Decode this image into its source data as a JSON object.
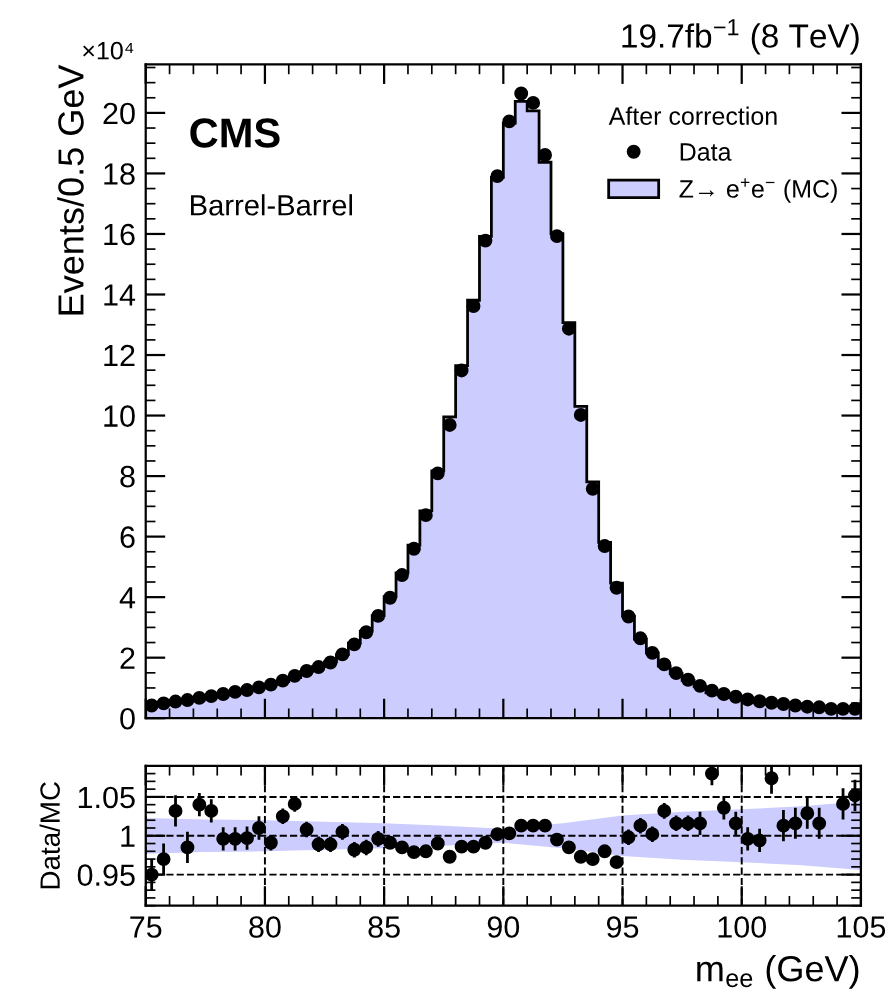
{
  "chart_data": [
    {
      "type": "histogram",
      "title": "19.7fb$^{−1}$ (8 TeV)",
      "ylabel": "Events/0.5 GeV",
      "legend": "top right",
      "legend_title": "After correction",
      "annotations": [
        "CMS",
        "Barrel-Barrel",
        "×10⁴"
      ],
      "bins": [
        75,
        75.5,
        76,
        76.5,
        77,
        77.5,
        78,
        78.5,
        79,
        79.5,
        80,
        80.5,
        81,
        81.5,
        82,
        82.5,
        83,
        83.5,
        84,
        84.5,
        85,
        85.5,
        86,
        86.5,
        87,
        87.5,
        88,
        88.5,
        89,
        89.5,
        90,
        90.5,
        91,
        91.5,
        92,
        92.5,
        93,
        93.5,
        94,
        94.5,
        95,
        95.5,
        96,
        96.5,
        97,
        97.5,
        98,
        98.5,
        99,
        99.5,
        100,
        100.5,
        101,
        101.5,
        102,
        102.5,
        103,
        103.5,
        104,
        104.5,
        105
      ],
      "series": [
        {
          "name": "Data",
          "type": "scatter",
          "color": "#000000",
          "marker": "circle",
          "x": [
            75.25,
            75.75,
            76.25,
            76.75,
            77.25,
            77.75,
            78.25,
            78.75,
            79.25,
            79.75,
            80.25,
            80.75,
            81.25,
            81.75,
            82.25,
            82.75,
            83.25,
            83.75,
            84.25,
            84.75,
            85.25,
            85.75,
            86.25,
            86.75,
            87.25,
            87.75,
            88.25,
            88.75,
            89.25,
            89.75,
            90.25,
            90.75,
            91.25,
            91.75,
            92.25,
            92.75,
            93.25,
            93.75,
            94.25,
            94.75,
            95.25,
            95.75,
            96.25,
            96.75,
            97.25,
            97.75,
            98.25,
            98.75,
            99.25,
            99.75,
            100.25,
            100.75,
            101.25,
            101.75,
            102.25,
            102.75,
            103.25,
            103.75,
            104.25,
            104.75
          ],
          "values": [
            0.42,
            0.49,
            0.55,
            0.6,
            0.67,
            0.73,
            0.8,
            0.87,
            0.93,
            1.02,
            1.11,
            1.24,
            1.4,
            1.56,
            1.69,
            1.84,
            2.11,
            2.44,
            2.84,
            3.38,
            3.98,
            4.73,
            5.6,
            6.71,
            8.09,
            9.69,
            11.49,
            13.62,
            15.78,
            17.91,
            19.72,
            20.64,
            20.33,
            18.61,
            15.93,
            12.87,
            10.02,
            7.58,
            5.69,
            4.31,
            3.36,
            2.64,
            2.16,
            1.78,
            1.49,
            1.27,
            1.07,
            0.91,
            0.8,
            0.71,
            0.62,
            0.56,
            0.51,
            0.47,
            0.42,
            0.38,
            0.36,
            0.31,
            0.31,
            0.31
          ]
        },
        {
          "name": "Z→ e$^{+}$e$^{−}$ (MC)",
          "color": "#ccccff",
          "values": [
            0.44,
            0.51,
            0.53,
            0.61,
            0.64,
            0.71,
            0.8,
            0.87,
            0.93,
            1.01,
            1.12,
            1.21,
            1.34,
            1.55,
            1.71,
            1.86,
            2.1,
            2.48,
            2.88,
            3.39,
            4.02,
            4.8,
            5.72,
            6.85,
            8.17,
            9.96,
            11.65,
            13.81,
            15.92,
            17.87,
            19.66,
            20.38,
            20.07,
            18.37,
            16.01,
            13.07,
            10.3,
            7.81,
            5.81,
            4.46,
            3.37,
            2.61,
            2.16,
            1.72,
            1.47,
            1.25,
            1.05,
            0.84,
            0.77,
            0.7,
            0.62,
            0.56,
            0.47,
            0.46,
            0.41,
            0.37,
            0.35,
            0.31,
            0.3,
            0.29
          ]
        }
      ],
      "xlim": [
        75,
        105
      ],
      "xticks": [
        75,
        80,
        85,
        90,
        95,
        100,
        105
      ],
      "ylim": [
        0,
        21.6
      ],
      "yticks": [
        0,
        2,
        4,
        6,
        8,
        10,
        12,
        14,
        16,
        18,
        20
      ],
      "tick_labels": "y",
      "grid": false
    },
    {
      "type": "scatter",
      "xlabel": "m$_{ee}$ (GeV)",
      "ylabel": "Data/MC",
      "series": [
        {
          "type": "line",
          "color": "#ccccff",
          "x": [
            75,
            77.5,
            80,
            82.5,
            85,
            87.5,
            90,
            92.5,
            95,
            97.5,
            100,
            102.5,
            105
          ],
          "values": [
            1,
            1,
            1,
            1,
            1,
            1,
            1,
            1,
            1,
            1,
            1,
            1,
            1
          ],
          "lower": [
            0.977,
            0.979,
            0.98,
            0.982,
            0.984,
            0.987,
            0.991,
            0.984,
            0.974,
            0.969,
            0.966,
            0.962,
            0.956
          ],
          "upper": [
            1.023,
            1.021,
            1.02,
            1.018,
            1.016,
            1.013,
            1.009,
            1.016,
            1.026,
            1.031,
            1.034,
            1.038,
            1.044
          ]
        },
        {
          "color": "#000000",
          "marker": "circle",
          "x": [
            75.25,
            75.75,
            76.25,
            76.75,
            77.25,
            77.75,
            78.25,
            78.75,
            79.25,
            79.75,
            80.25,
            80.75,
            81.25,
            81.75,
            82.25,
            82.75,
            83.25,
            83.75,
            84.25,
            84.75,
            85.25,
            85.75,
            86.25,
            86.75,
            87.25,
            87.75,
            88.25,
            88.75,
            89.25,
            89.75,
            90.25,
            90.75,
            91.25,
            91.75,
            92.25,
            92.75,
            93.25,
            93.75,
            94.25,
            94.75,
            95.25,
            95.75,
            96.25,
            96.75,
            97.25,
            97.75,
            98.25,
            98.75,
            99.25,
            99.75,
            100.25,
            100.75,
            101.25,
            101.75,
            102.25,
            102.75,
            103.25,
            103.75,
            104.25,
            104.75
          ],
          "values": [
            0.95,
            0.97,
            1.032,
            0.985,
            1.04,
            1.032,
            0.996,
            0.996,
            0.997,
            1.01,
            0.991,
            1.025,
            1.041,
            1.008,
            0.989,
            0.989,
            1.005,
            0.982,
            0.985,
            0.996,
            0.991,
            0.985,
            0.979,
            0.98,
            0.99,
            0.973,
            0.986,
            0.986,
            0.991,
            1.002,
            1.003,
            1.013,
            1.013,
            1.013,
            0.995,
            0.985,
            0.973,
            0.97,
            0.98,
            0.966,
            0.998,
            1.013,
            1.002,
            1.032,
            1.016,
            1.016,
            1.016,
            1.08,
            1.036,
            1.016,
            0.996,
            0.994,
            1.074,
            1.013,
            1.016,
            1.029,
            1.016,
            null,
            1.041,
            1.052
          ],
          "errors": [
            0.02,
            0.02,
            0.02,
            0.02,
            0.015,
            0.015,
            0.015,
            0.015,
            0.015,
            0.015,
            0.01,
            0.01,
            0.01,
            0.01,
            0.01,
            0.01,
            0.01,
            0.01,
            0.01,
            0.01,
            0.006,
            0.006,
            0.006,
            0.006,
            0.006,
            0.006,
            0.004,
            0.004,
            0.004,
            0.004,
            0.004,
            0.004,
            0.004,
            0.004,
            0.006,
            0.006,
            0.006,
            0.006,
            0.006,
            0.006,
            0.01,
            0.01,
            0.01,
            0.01,
            0.01,
            0.01,
            0.015,
            0.015,
            0.015,
            0.015,
            0.015,
            0.015,
            0.02,
            0.02,
            0.02,
            0.02,
            0.02,
            null,
            0.02,
            0.02
          ]
        }
      ],
      "xlim": [
        75,
        105
      ],
      "xticks": [
        75,
        80,
        85,
        90,
        95,
        100,
        105
      ],
      "ylim": [
        0.91,
        1.09
      ],
      "yticks": [
        0.95,
        1,
        1.05
      ],
      "grid": true
    }
  ]
}
